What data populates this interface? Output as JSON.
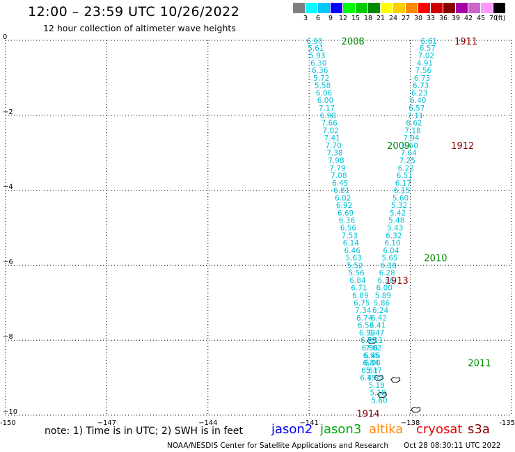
{
  "header": {
    "title": "12:00 – 23:59 UTC 10/26/2022",
    "subtitle": "12 hour collection of altimeter wave heights"
  },
  "legend": {
    "colors": [
      "#7f7f7f",
      "#00ffff",
      "#00c8ff",
      "#0000ff",
      "#00ff00",
      "#00cc00",
      "#008800",
      "#ffff00",
      "#ffcc00",
      "#ff8800",
      "#ff0000",
      "#cc0000",
      "#880000",
      "#aa00aa",
      "#cc66cc",
      "#ff99ff",
      "#000000"
    ],
    "labels": [
      "3",
      "6",
      "9",
      "12",
      "15",
      "18",
      "21",
      "24",
      "27",
      "30",
      "33",
      "36",
      "39",
      "42",
      "45",
      "70"
    ],
    "unit": "(ft)"
  },
  "footer": {
    "note": "note:  1) Time is in UTC; 2) SWH is in feet",
    "missions": [
      {
        "name": "jason2",
        "color": "#0000ee"
      },
      {
        "name": "jason3",
        "color": "#00aa00"
      },
      {
        "name": "altika",
        "color": "#ff8800"
      },
      {
        "name": "cryosat",
        "color": "#ee0000"
      },
      {
        "name": "s3a",
        "color": "#880000"
      }
    ],
    "credit": "NOAA/NESDIS Center for Satellite Applications and Research",
    "timestamp": "Oct 28 08:30:11 UTC 2022"
  },
  "chart_data": {
    "type": "scatter",
    "title": "12:00 – 23:59 UTC 10/26/2022",
    "subtitle": "12 hour collection of altimeter wave heights",
    "xlim": [
      -150,
      -135
    ],
    "ylim": [
      -10,
      0
    ],
    "x_ticks": [
      -150,
      -147,
      -144,
      -141,
      -138,
      -135
    ],
    "x_tick_labels": [
      "-150",
      "−147",
      "−144",
      "−141",
      "−138",
      "-135"
    ],
    "y_ticks": [
      0,
      -2,
      -4,
      -6,
      -8,
      -10
    ],
    "y_tick_labels": [
      "0",
      "−2",
      "−4",
      "−6",
      "−8",
      "−10"
    ],
    "grid": true,
    "value_color": "#00c0d8",
    "series": [
      {
        "name": "jason3",
        "color": "#008800",
        "track_values": [
          {
            "x": -140.84,
            "y": -0.02,
            "v": "6.90"
          },
          {
            "x": -140.8,
            "y": -0.2,
            "v": "5.61"
          },
          {
            "x": -140.76,
            "y": -0.4,
            "v": "5.93"
          },
          {
            "x": -140.72,
            "y": -0.6,
            "v": "6.30"
          },
          {
            "x": -140.68,
            "y": -0.8,
            "v": "6.36"
          },
          {
            "x": -140.64,
            "y": -1.0,
            "v": "5.72"
          },
          {
            "x": -140.6,
            "y": -1.2,
            "v": "5.58"
          },
          {
            "x": -140.56,
            "y": -1.4,
            "v": "6.06"
          },
          {
            "x": -140.52,
            "y": -1.6,
            "v": "6.00"
          },
          {
            "x": -140.48,
            "y": -1.8,
            "v": "7.17"
          },
          {
            "x": -140.44,
            "y": -2.0,
            "v": "6.98"
          },
          {
            "x": -140.4,
            "y": -2.2,
            "v": "7.66"
          },
          {
            "x": -140.36,
            "y": -2.4,
            "v": "7.02"
          },
          {
            "x": -140.32,
            "y": -2.6,
            "v": "7.41"
          },
          {
            "x": -140.28,
            "y": -2.8,
            "v": "7.70"
          },
          {
            "x": -140.24,
            "y": -3.0,
            "v": "7.38"
          },
          {
            "x": -140.2,
            "y": -3.2,
            "v": "7.98"
          },
          {
            "x": -140.16,
            "y": -3.4,
            "v": "7.79"
          },
          {
            "x": -140.12,
            "y": -3.6,
            "v": "7.08"
          },
          {
            "x": -140.08,
            "y": -3.8,
            "v": "6.45"
          },
          {
            "x": -140.04,
            "y": -4.0,
            "v": "6.81"
          },
          {
            "x": -140.0,
            "y": -4.2,
            "v": "6.02"
          },
          {
            "x": -139.96,
            "y": -4.4,
            "v": "6.92"
          },
          {
            "x": -139.92,
            "y": -4.6,
            "v": "6.69"
          },
          {
            "x": -139.88,
            "y": -4.8,
            "v": "6.36"
          },
          {
            "x": -139.84,
            "y": -5.0,
            "v": "6.56"
          },
          {
            "x": -139.8,
            "y": -5.2,
            "v": "7.53"
          },
          {
            "x": -139.76,
            "y": -5.4,
            "v": "6.14"
          },
          {
            "x": -139.72,
            "y": -5.6,
            "v": "6.46"
          },
          {
            "x": -139.68,
            "y": -5.8,
            "v": "5.63"
          },
          {
            "x": -139.64,
            "y": -6.0,
            "v": "5.52"
          },
          {
            "x": -139.6,
            "y": -6.2,
            "v": "5.56"
          },
          {
            "x": -139.56,
            "y": -6.4,
            "v": "6.84"
          },
          {
            "x": -139.52,
            "y": -6.6,
            "v": "6.71"
          },
          {
            "x": -139.48,
            "y": -6.8,
            "v": "6.89"
          },
          {
            "x": -139.44,
            "y": -7.0,
            "v": "6.75"
          },
          {
            "x": -139.4,
            "y": -7.2,
            "v": "7.34"
          },
          {
            "x": -139.36,
            "y": -7.4,
            "v": "6.74"
          },
          {
            "x": -139.32,
            "y": -7.6,
            "v": "6.57"
          },
          {
            "x": -139.28,
            "y": -7.8,
            "v": "6.59"
          },
          {
            "x": -139.24,
            "y": -8.0,
            "v": "6.59"
          },
          {
            "x": -139.2,
            "y": -8.2,
            "v": "6.86"
          },
          {
            "x": -139.16,
            "y": -8.4,
            "v": "6.95"
          },
          {
            "x": -139.12,
            "y": -8.6,
            "v": "6.00"
          },
          {
            "x": -139.08,
            "y": -8.8,
            "v": "5.37"
          },
          {
            "x": -139.04,
            "y": -9.0,
            "v": "4.82"
          },
          {
            "x": -139.0,
            "y": -9.2,
            "v": "5.18"
          },
          {
            "x": -138.96,
            "y": -9.4,
            "v": "5.18"
          },
          {
            "x": -138.92,
            "y": -9.6,
            "v": "5.60"
          }
        ],
        "pass_labels": [
          {
            "x": -139.7,
            "y": -0.02,
            "text": "2008"
          },
          {
            "x": -138.35,
            "y": -2.8,
            "text": "2009"
          },
          {
            "x": -137.25,
            "y": -5.8,
            "text": "2010"
          },
          {
            "x": -135.95,
            "y": -8.6,
            "text": "2011"
          }
        ]
      },
      {
        "name": "s3a",
        "color": "#880000",
        "track_values": [
          {
            "x": -137.45,
            "y": -0.02,
            "v": "6.61"
          },
          {
            "x": -137.49,
            "y": -0.2,
            "v": "6.57"
          },
          {
            "x": -137.53,
            "y": -0.4,
            "v": "7.02"
          },
          {
            "x": -137.57,
            "y": -0.6,
            "v": "4.91"
          },
          {
            "x": -137.61,
            "y": -0.8,
            "v": "7.56"
          },
          {
            "x": -137.65,
            "y": -1.0,
            "v": "6.73"
          },
          {
            "x": -137.69,
            "y": -1.2,
            "v": "6.73"
          },
          {
            "x": -137.73,
            "y": -1.4,
            "v": "6.23"
          },
          {
            "x": -137.77,
            "y": -1.6,
            "v": "6.40"
          },
          {
            "x": -137.81,
            "y": -1.8,
            "v": "6.57"
          },
          {
            "x": -137.85,
            "y": -2.0,
            "v": "7.11"
          },
          {
            "x": -137.89,
            "y": -2.2,
            "v": "6.62"
          },
          {
            "x": -137.93,
            "y": -2.4,
            "v": "7.18"
          },
          {
            "x": -137.97,
            "y": -2.6,
            "v": "7.94"
          },
          {
            "x": -138.01,
            "y": -2.8,
            "v": "6.60"
          },
          {
            "x": -138.05,
            "y": -3.0,
            "v": "7.64"
          },
          {
            "x": -138.09,
            "y": -3.2,
            "v": "7.25"
          },
          {
            "x": -138.13,
            "y": -3.4,
            "v": "6.22"
          },
          {
            "x": -138.17,
            "y": -3.6,
            "v": "6.51"
          },
          {
            "x": -138.21,
            "y": -3.8,
            "v": "6.17"
          },
          {
            "x": -138.25,
            "y": -4.0,
            "v": "6.15"
          },
          {
            "x": -138.29,
            "y": -4.2,
            "v": "5.60"
          },
          {
            "x": -138.33,
            "y": -4.4,
            "v": "5.32"
          },
          {
            "x": -138.37,
            "y": -4.6,
            "v": "5.42"
          },
          {
            "x": -138.41,
            "y": -4.8,
            "v": "5.48"
          },
          {
            "x": -138.45,
            "y": -5.0,
            "v": "5.43"
          },
          {
            "x": -138.49,
            "y": -5.2,
            "v": "6.32"
          },
          {
            "x": -138.53,
            "y": -5.4,
            "v": "6.10"
          },
          {
            "x": -138.57,
            "y": -5.6,
            "v": "6.04"
          },
          {
            "x": -138.61,
            "y": -5.8,
            "v": "5.65"
          },
          {
            "x": -138.65,
            "y": -6.0,
            "v": "6.38"
          },
          {
            "x": -138.69,
            "y": -6.2,
            "v": "6.28"
          },
          {
            "x": -138.73,
            "y": -6.4,
            "v": "6.36"
          },
          {
            "x": -138.77,
            "y": -6.6,
            "v": "6.00"
          },
          {
            "x": -138.81,
            "y": -6.8,
            "v": "5.89"
          },
          {
            "x": -138.85,
            "y": -7.0,
            "v": "5.86"
          },
          {
            "x": -138.89,
            "y": -7.2,
            "v": "6.24"
          },
          {
            "x": -138.93,
            "y": -7.4,
            "v": "6.42"
          },
          {
            "x": -138.97,
            "y": -7.6,
            "v": "6.41"
          },
          {
            "x": -139.01,
            "y": -7.8,
            "v": "6.47"
          },
          {
            "x": -139.05,
            "y": -8.0,
            "v": "7.11"
          },
          {
            "x": -139.09,
            "y": -8.2,
            "v": "7.02"
          },
          {
            "x": -139.13,
            "y": -8.4,
            "v": "6.46"
          },
          {
            "x": -139.17,
            "y": -8.6,
            "v": "6.84"
          },
          {
            "x": -139.21,
            "y": -8.8,
            "v": "6.61"
          },
          {
            "x": -139.25,
            "y": -9.0,
            "v": "6.15"
          }
        ],
        "pass_labels": [
          {
            "x": -136.35,
            "y": -0.02,
            "text": "1911"
          },
          {
            "x": -136.45,
            "y": -2.8,
            "text": "1912"
          },
          {
            "x": -138.4,
            "y": -6.4,
            "text": "1913"
          },
          {
            "x": -139.25,
            "y": -9.95,
            "text": "1914"
          }
        ]
      }
    ],
    "landmasses": [
      {
        "x": -139.15,
        "y": -8.02
      },
      {
        "x": -138.95,
        "y": -9.0
      },
      {
        "x": -138.45,
        "y": -9.05
      },
      {
        "x": -138.85,
        "y": -9.45
      },
      {
        "x": -137.85,
        "y": -9.85
      }
    ]
  }
}
